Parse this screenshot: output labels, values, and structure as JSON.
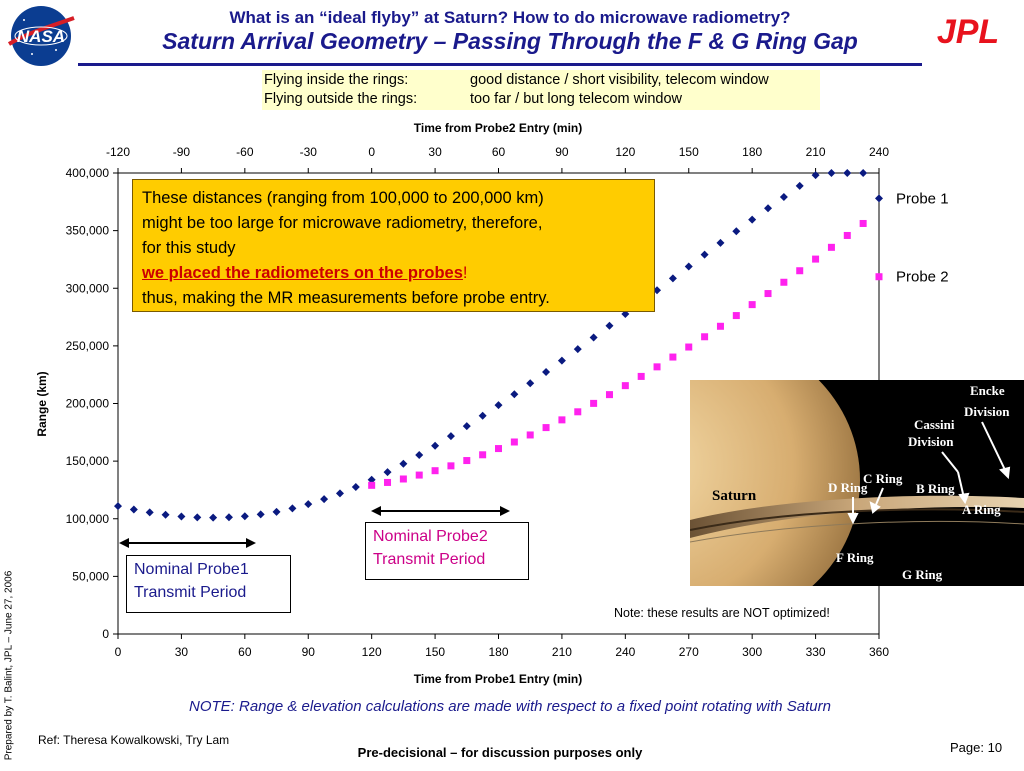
{
  "header": {
    "title_line1": "What is an “ideal flyby” at Saturn? How to do microwave radiometry?",
    "title_line2": "Saturn Arrival Geometry – Passing Through the F & G Ring Gap",
    "nasa_logo_text": "NASA",
    "jpl_logo_text": "JPL"
  },
  "info": {
    "rows": [
      {
        "label": "Flying inside the rings:",
        "value": "good distance / short visibility, telecom window"
      },
      {
        "label": "Flying outside the rings:",
        "value": "too far / but long telecom window"
      }
    ]
  },
  "callout": {
    "line1": "These distances (ranging from 100,000 to 200,000 km)",
    "line2": "might be too large for microwave radiometry, therefore,",
    "line3": "for this study",
    "emphasis": "we placed the radiometers on the probes",
    "emphasis_suffix": "!",
    "line5": "thus, making the MR measurements before probe entry."
  },
  "transmit": {
    "probe1": {
      "line1": "Nominal Probe1",
      "line2": "Transmit Period"
    },
    "probe2": {
      "line1": "Nominal Probe2",
      "line2": "Transmit Period"
    }
  },
  "saturn_image": {
    "labels": [
      "Saturn",
      "D Ring",
      "C Ring",
      "B Ring",
      "A Ring",
      "Cassini",
      "Division",
      "Encke",
      "Division",
      "F Ring",
      "G Ring"
    ]
  },
  "notes": {
    "not_optimized": "Note: these results are NOT optimized!",
    "main": "NOTE: Range & elevation calculations are made with respect to a fixed point rotating with Saturn"
  },
  "footer": {
    "ref": "Ref: Theresa Kowalkowski, Try Lam",
    "center": "Pre-decisional – for discussion purposes only",
    "page": "Page: 10",
    "prepared": "Prepared by T. Balint, JPL – June 27, 2006"
  },
  "chart_data": {
    "type": "scatter",
    "xlabel": "Time from Probe1 Entry (min)",
    "x2label": "Time from Probe2 Entry (min)",
    "ylabel": "Range (km)",
    "xlim": [
      0,
      360
    ],
    "x2lim": [
      -120,
      240
    ],
    "ylim": [
      0,
      400000
    ],
    "xticks": [
      "0",
      "30",
      "60",
      "90",
      "120",
      "150",
      "180",
      "210",
      "240",
      "270",
      "300",
      "330",
      "360"
    ],
    "x2ticks": [
      "-120",
      "-90",
      "-60",
      "-30",
      "0",
      "30",
      "60",
      "90",
      "120",
      "150",
      "180",
      "210",
      "240"
    ],
    "yticks": [
      "0",
      "50,000",
      "100,000",
      "150,000",
      "200,000",
      "250,000",
      "300,000",
      "350,000",
      "400,000"
    ],
    "grid": false,
    "legend": "right-end labels",
    "series": [
      {
        "name": "Probe 1",
        "color": "#0a1a80",
        "marker": "diamond",
        "x": [
          0,
          7.5,
          15,
          22.5,
          30,
          37.5,
          45,
          52.5,
          60,
          67.5,
          75,
          82.5,
          90,
          97.5,
          105,
          112.5,
          120,
          127.5,
          135,
          142.5,
          150,
          157.5,
          165,
          172.5,
          180,
          187.5,
          195,
          202.5,
          210,
          217.5,
          225,
          232.5,
          240,
          247.5,
          255,
          262.5,
          270,
          277.5,
          285,
          292.5,
          300,
          307.5,
          315,
          322.5,
          330,
          337.5,
          345,
          352.5,
          360
        ],
        "values": [
          111000,
          108000,
          105500,
          103500,
          102000,
          101200,
          101000,
          101300,
          102200,
          103800,
          106000,
          109000,
          112700,
          117000,
          122000,
          127600,
          133800,
          140500,
          147700,
          155300,
          163300,
          171700,
          180400,
          189400,
          198600,
          208000,
          217600,
          227300,
          237200,
          247200,
          257300,
          267500,
          277700,
          288000,
          298300,
          308600,
          318900,
          329200,
          339400,
          349500,
          359500,
          369400,
          379200,
          388800,
          398200,
          407400,
          416300,
          425000,
          378000
        ]
      },
      {
        "name": "Probe 2",
        "color": "#ff22ee",
        "marker": "square",
        "x": [
          120,
          127.5,
          135,
          142.5,
          150,
          157.5,
          165,
          172.5,
          180,
          187.5,
          195,
          202.5,
          210,
          217.5,
          225,
          232.5,
          240,
          247.5,
          255,
          262.5,
          270,
          277.5,
          285,
          292.5,
          300,
          307.5,
          315,
          322.5,
          330,
          337.5,
          345,
          352.5,
          360
        ],
        "values": [
          129000,
          131500,
          134500,
          137900,
          141700,
          145900,
          150500,
          155500,
          160900,
          166600,
          172700,
          179100,
          185800,
          192800,
          200100,
          207700,
          215500,
          223500,
          231800,
          240300,
          249000,
          257900,
          267000,
          276300,
          285800,
          295400,
          305200,
          315200,
          325300,
          335500,
          345800,
          356200,
          310000
        ]
      }
    ]
  }
}
